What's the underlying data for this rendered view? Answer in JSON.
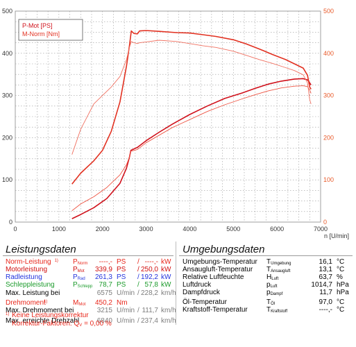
{
  "chart_data": {
    "type": "line",
    "legend_placement": "top-left",
    "legend": [
      "P-Mot [PS]",
      "M-Norm [Nm]"
    ],
    "xlabel": "n [U/min]",
    "xlim": [
      0,
      7000
    ],
    "x_ticks": [
      "0",
      "1000",
      "2000",
      "3000",
      "4000",
      "5000",
      "6000",
      "7000"
    ],
    "ylim_left": [
      0,
      500
    ],
    "y_ticks_left": [
      "0",
      "100",
      "200",
      "300",
      "400",
      "500"
    ],
    "ylim_right": [
      0,
      500
    ],
    "y_ticks_right": [
      "0",
      "100",
      "200",
      "300",
      "400",
      "500"
    ],
    "grid": true,
    "series": [
      {
        "name": "P-Mot [PS]",
        "axis": "left",
        "color": "#d0101a",
        "points": [
          [
            1300,
            8
          ],
          [
            1500,
            18
          ],
          [
            1800,
            34
          ],
          [
            2100,
            56
          ],
          [
            2400,
            92
          ],
          [
            2550,
            128
          ],
          [
            2620,
            155
          ],
          [
            2650,
            170
          ],
          [
            2800,
            177
          ],
          [
            3000,
            193
          ],
          [
            3300,
            213
          ],
          [
            3600,
            232
          ],
          [
            4000,
            255
          ],
          [
            4400,
            275
          ],
          [
            4800,
            293
          ],
          [
            5200,
            306
          ],
          [
            5500,
            317
          ],
          [
            5800,
            327
          ],
          [
            6100,
            334
          ],
          [
            6400,
            339
          ],
          [
            6600,
            340
          ],
          [
            6700,
            337
          ],
          [
            6750,
            330
          ],
          [
            6780,
            325
          ]
        ]
      },
      {
        "name": "P-Mot [PS] (2)",
        "axis": "left",
        "color": "#ee5544",
        "points": [
          [
            1300,
            27
          ],
          [
            1500,
            43
          ],
          [
            1800,
            60
          ],
          [
            2100,
            82
          ],
          [
            2400,
            112
          ],
          [
            2550,
            136
          ],
          [
            2620,
            155
          ],
          [
            2650,
            168
          ],
          [
            2800,
            172
          ],
          [
            3000,
            188
          ],
          [
            3300,
            206
          ],
          [
            3600,
            224
          ],
          [
            4000,
            243
          ],
          [
            4400,
            262
          ],
          [
            4800,
            278
          ],
          [
            5200,
            292
          ],
          [
            5500,
            302
          ],
          [
            5800,
            311
          ],
          [
            6100,
            318
          ],
          [
            6400,
            322
          ],
          [
            6600,
            323
          ],
          [
            6700,
            321
          ],
          [
            6750,
            313
          ],
          [
            6780,
            305
          ]
        ]
      },
      {
        "name": "M-Norm [Nm]",
        "axis": "right",
        "color": "#e23020",
        "points": [
          [
            1300,
            90
          ],
          [
            1500,
            116
          ],
          [
            1800,
            145
          ],
          [
            2000,
            170
          ],
          [
            2200,
            215
          ],
          [
            2400,
            285
          ],
          [
            2550,
            370
          ],
          [
            2620,
            420
          ],
          [
            2660,
            453
          ],
          [
            2720,
            447
          ],
          [
            2800,
            446
          ],
          [
            2850,
            453
          ],
          [
            3000,
            454
          ],
          [
            3300,
            452
          ],
          [
            3700,
            449
          ],
          [
            4000,
            448
          ],
          [
            4300,
            444
          ],
          [
            4600,
            440
          ],
          [
            5000,
            432
          ],
          [
            5300,
            422
          ],
          [
            5600,
            410
          ],
          [
            5900,
            397
          ],
          [
            6200,
            385
          ],
          [
            6400,
            375
          ],
          [
            6600,
            365
          ],
          [
            6700,
            348
          ],
          [
            6750,
            320
          ],
          [
            6780,
            315
          ]
        ]
      },
      {
        "name": "M-Norm [Nm] (2)",
        "axis": "right",
        "color": "#f07060",
        "points": [
          [
            1300,
            160
          ],
          [
            1500,
            220
          ],
          [
            1800,
            280
          ],
          [
            2000,
            300
          ],
          [
            2200,
            320
          ],
          [
            2400,
            345
          ],
          [
            2550,
            385
          ],
          [
            2620,
            415
          ],
          [
            2660,
            428
          ],
          [
            2720,
            425
          ],
          [
            2800,
            423
          ],
          [
            2850,
            425
          ],
          [
            3000,
            427
          ],
          [
            3300,
            431
          ],
          [
            3700,
            428
          ],
          [
            4000,
            423
          ],
          [
            4300,
            418
          ],
          [
            4600,
            414
          ],
          [
            5000,
            405
          ],
          [
            5300,
            395
          ],
          [
            5600,
            385
          ],
          [
            5900,
            376
          ],
          [
            6200,
            366
          ],
          [
            6400,
            359
          ],
          [
            6600,
            349
          ],
          [
            6700,
            330
          ],
          [
            6750,
            290
          ],
          [
            6780,
            280
          ]
        ]
      }
    ]
  },
  "left_panel": {
    "title": "Leistungsdaten",
    "rows": [
      {
        "label": "Norm-Leistung",
        "sup": "1)",
        "sym": "P",
        "sub": "Norm",
        "v1": "----,-",
        "u1": "PS",
        "sep": "/",
        "v2": "----,-",
        "u2": "kW"
      },
      {
        "label": "Motorleistung",
        "sup": "",
        "sym": "P",
        "sub": "Mot",
        "v1": "339,9",
        "u1": "PS",
        "sep": "/",
        "v2": "250,0",
        "u2": "kW"
      },
      {
        "label": "Radleistung",
        "sup": "",
        "sym": "P",
        "sub": "Rad",
        "v1": "261,3",
        "u1": "PS",
        "sep": "/",
        "v2": "192,2",
        "u2": "kW"
      },
      {
        "label": "Schleppleistung",
        "sup": "",
        "sym": "P",
        "sub": "Schlepp",
        "v1": "78,7",
        "u1": "PS",
        "sep": "/",
        "v2": "57,8",
        "u2": "kW"
      },
      {
        "label": "Max. Leistung bei",
        "sup": "",
        "sym": "",
        "sub": "",
        "v1": "6575",
        "u1": "U/min",
        "sep": "/",
        "v2": "228,2",
        "u2": "km/h"
      },
      {
        "label": "Drehmoment",
        "sup": "1)",
        "sym": "M",
        "sub": "Mot",
        "v1": "450,2",
        "u1": "Nm",
        "sep": "",
        "v2": "",
        "u2": ""
      },
      {
        "label": "Max. Drehmoment bei",
        "sup": "",
        "sym": "",
        "sub": "",
        "v1": "3215",
        "u1": "U/min",
        "sep": "/",
        "v2": "111,7",
        "u2": "km/h"
      },
      {
        "label": "Max. erreichte Drehzahl",
        "sup": "",
        "sym": "",
        "sub": "",
        "v1": "6840",
        "u1": "U/min",
        "sep": "/",
        "v2": "237,4",
        "u2": "km/h"
      }
    ],
    "footnote_line1": "Keine Leistungskorrektur",
    "footnote_mark": "1)",
    "footnote_line2_label": "Korrektur-Faktoren: Q",
    "footnote_line2_sub": "V",
    "footnote_line2_value": "= 0,00 %"
  },
  "right_panel": {
    "title": "Umgebungsdaten",
    "rows": [
      {
        "label": "Umgebungs-Temperatur",
        "sym": "T",
        "sub": "Umgebung",
        "value": "16,1",
        "unit": "°C"
      },
      {
        "label": "Ansaugluft-Temperatur",
        "sym": "T",
        "sub": "Ansaugluft",
        "value": "13,1",
        "unit": "°C"
      },
      {
        "label": "Relative Luftfeuchte",
        "sym": "H",
        "sub": "Luft",
        "value": "63,7",
        "unit": "%"
      },
      {
        "label": "Luftdruck",
        "sym": "p",
        "sub": "Luft",
        "value": "1014,7",
        "unit": "hPa"
      },
      {
        "label": "Dampfdruck",
        "sym": "p",
        "sub": "Dampf",
        "value": "11,7",
        "unit": "hPa"
      },
      {
        "label": "Öl-Temperatur",
        "sym": "T",
        "sub": "Öl",
        "value": "97,0",
        "unit": "°C"
      },
      {
        "label": "Kraftstoff-Temperatur",
        "sym": "T",
        "sub": "Kraftstoff",
        "value": "----,-",
        "unit": "°C"
      }
    ]
  },
  "colors": {
    "power_main": "#d0101a",
    "power_secondary": "#ee5544",
    "torque_main": "#e23020",
    "torque_secondary": "#f07060",
    "right_axis": "#e85a2a",
    "norm": "#e8261a",
    "mot": "#d1100f",
    "rad": "#2233dd",
    "schlepp": "#1a9a2a",
    "gray": "#7d7d7d"
  }
}
